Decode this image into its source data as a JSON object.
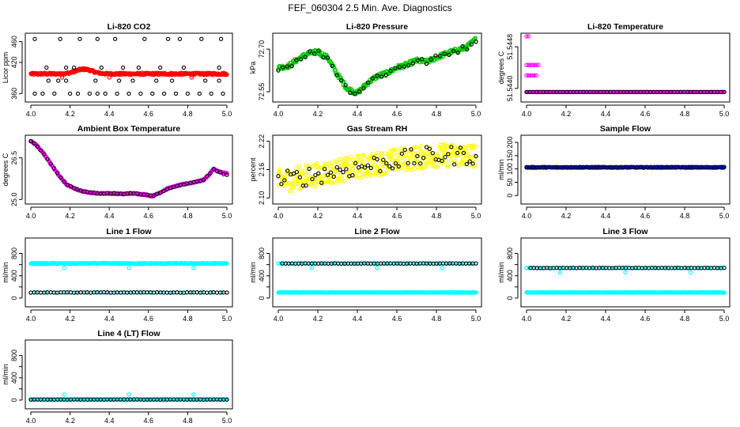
{
  "title": "FEF_060304  2.5 Min. Ave. Diagnostics",
  "colors": {
    "black": "#000000",
    "red": "#ff0000",
    "green": "#00c800",
    "magenta": "#ff00ff",
    "yellow": "#ffff00",
    "blue": "#0000ff",
    "cyan": "#00ffff"
  },
  "chart_data": [
    {
      "id": "co2",
      "type": "scatter",
      "title": "Li-820 CO2",
      "ylabel": "Licor ppm",
      "xlim": [
        4.0,
        5.0
      ],
      "xticks": [
        "4.0",
        "4.2",
        "4.4",
        "4.6",
        "4.8",
        "5.0"
      ],
      "ylim": [
        350,
        470
      ],
      "yticks": [
        360,
        420,
        460
      ],
      "ytick_labels": [
        "360",
        "420",
        "460"
      ],
      "series": [
        {
          "name": "red",
          "color": "#ff0000",
          "kind": "band",
          "y": 398,
          "jitter": 2,
          "n": 380,
          "bumps": [
            {
              "x": 4.27,
              "w": 0.06,
              "h": 9
            }
          ],
          "x": [
            4.16,
            4.4,
            4.82
          ],
          "yv": [
            391,
            391,
            391
          ]
        },
        {
          "name": "black",
          "color": "#000000",
          "kind": "points",
          "x": [
            4.02,
            4.06,
            4.12,
            4.2,
            4.24,
            4.3,
            4.34,
            4.38,
            4.44,
            4.5,
            4.56,
            4.62,
            4.68,
            4.74,
            4.8,
            4.86,
            4.92,
            4.98,
            4.09,
            4.14,
            4.18,
            4.33,
            4.45,
            4.52,
            4.64,
            4.72,
            4.89,
            4.96,
            4.08,
            4.18,
            4.22,
            4.36,
            4.47,
            4.55,
            4.66,
            4.78,
            4.96,
            4.02,
            4.15,
            4.25,
            4.34,
            4.43,
            4.58,
            4.7,
            4.76,
            4.87,
            4.97
          ],
          "y": [
            360,
            360,
            360,
            360,
            360,
            360,
            360,
            360,
            360,
            360,
            360,
            360,
            360,
            360,
            360,
            360,
            360,
            360,
            385,
            385,
            385,
            385,
            385,
            385,
            385,
            385,
            385,
            385,
            410,
            410,
            410,
            410,
            410,
            410,
            410,
            410,
            410,
            465,
            465,
            465,
            465,
            465,
            465,
            465,
            465,
            465,
            465
          ]
        }
      ]
    },
    {
      "id": "pressure",
      "type": "scatter",
      "title": "Li-820 Pressure",
      "ylabel": "kPa",
      "xlim": [
        4.0,
        5.0
      ],
      "xticks": [
        "4.0",
        "4.2",
        "4.4",
        "4.6",
        "4.8",
        "5.0"
      ],
      "ylim": [
        72.525,
        72.745
      ],
      "yticks": [
        72.55,
        72.7
      ],
      "ytick_labels": [
        "72.55",
        "72.70"
      ],
      "series": [
        {
          "name": "green",
          "color": "#00c800",
          "kind": "curve",
          "jitter": 0.008,
          "n": 320,
          "x": [
            4.0,
            4.05,
            4.1,
            4.15,
            4.2,
            4.25,
            4.3,
            4.35,
            4.4,
            4.45,
            4.5,
            4.55,
            4.6,
            4.65,
            4.7,
            4.75,
            4.8,
            4.85,
            4.9,
            4.95,
            5.0
          ],
          "y": [
            72.635,
            72.64,
            72.665,
            72.685,
            72.69,
            72.67,
            72.61,
            72.56,
            72.545,
            72.58,
            72.605,
            72.615,
            72.635,
            72.645,
            72.66,
            72.655,
            72.67,
            72.685,
            72.695,
            72.705,
            72.735
          ]
        },
        {
          "name": "black",
          "color": "#000000",
          "kind": "curve",
          "jitter": 0.01,
          "n": 45,
          "x": [
            4.0,
            4.05,
            4.1,
            4.15,
            4.2,
            4.25,
            4.3,
            4.35,
            4.4,
            4.45,
            4.5,
            4.55,
            4.6,
            4.65,
            4.7,
            4.75,
            4.8,
            4.85,
            4.9,
            4.95,
            5.0
          ],
          "y": [
            72.635,
            72.64,
            72.665,
            72.685,
            72.69,
            72.67,
            72.61,
            72.56,
            72.545,
            72.58,
            72.605,
            72.615,
            72.635,
            72.645,
            72.66,
            72.655,
            72.67,
            72.685,
            72.695,
            72.705,
            72.735
          ]
        }
      ]
    },
    {
      "id": "licortemp",
      "type": "scatter",
      "title": "Li-820 Temperature",
      "ylabel": "degrees C",
      "xlim": [
        4.0,
        5.0
      ],
      "xticks": [
        "4.0",
        "4.2",
        "4.4",
        "4.6",
        "4.8",
        "5.0"
      ],
      "ylim": [
        51.5438,
        51.545
      ],
      "yticks": [
        51.544,
        51.5448
      ],
      "ytick_labels": [
        "51.5440",
        "51.5448"
      ],
      "series": [
        {
          "name": "magenta",
          "color": "#ff00ff",
          "kind": "points",
          "x": [
            4.0,
            4.01,
            4.02,
            4.03,
            4.04,
            4.05,
            4.0,
            4.01,
            4.02,
            4.03,
            4.04,
            4.05,
            4.06,
            4.0,
            4.01
          ],
          "y": [
            51.54425,
            51.54425,
            51.54425,
            51.54425,
            51.54425,
            51.54425,
            51.54445,
            51.54445,
            51.54445,
            51.54445,
            51.54445,
            51.54445,
            51.54445,
            51.545,
            51.545
          ]
        },
        {
          "name": "magenta",
          "color": "#ff00ff",
          "kind": "band",
          "y": 51.54393,
          "jitter": 0.0,
          "n": 250
        },
        {
          "name": "black",
          "color": "#000000",
          "kind": "band",
          "y": 51.54393,
          "jitter": 0.0,
          "n": 60
        }
      ]
    },
    {
      "id": "boxtemp",
      "type": "scatter",
      "title": "Ambient Box Temperature",
      "ylabel": "degrees C",
      "xlim": [
        4.0,
        5.0
      ],
      "xticks": [
        "4.0",
        "4.2",
        "4.4",
        "4.6",
        "4.8",
        "5.0"
      ],
      "ylim": [
        24.95,
        27.2
      ],
      "yticks": [
        25.0,
        26.5
      ],
      "ytick_labels": [
        "25.0",
        "26.5"
      ],
      "series": [
        {
          "name": "magenta",
          "color": "#ff00ff",
          "kind": "curve",
          "jitter": 0.02,
          "n": 330,
          "x": [
            4.0,
            4.03,
            4.06,
            4.1,
            4.14,
            4.18,
            4.22,
            4.26,
            4.3,
            4.34,
            4.4,
            4.46,
            4.52,
            4.58,
            4.62,
            4.66,
            4.7,
            4.76,
            4.82,
            4.88,
            4.91,
            4.93,
            4.96,
            4.99
          ],
          "y": [
            27.1,
            26.95,
            26.7,
            26.3,
            25.9,
            25.55,
            25.4,
            25.3,
            25.25,
            25.22,
            25.22,
            25.2,
            25.22,
            25.18,
            25.12,
            25.25,
            25.4,
            25.52,
            25.6,
            25.7,
            25.9,
            26.1,
            26.0,
            25.95
          ]
        },
        {
          "name": "black",
          "color": "#000000",
          "kind": "curve",
          "jitter": 0.015,
          "n": 60,
          "x": [
            4.0,
            4.03,
            4.06,
            4.1,
            4.14,
            4.18,
            4.22,
            4.26,
            4.3,
            4.34,
            4.4,
            4.46,
            4.52,
            4.58,
            4.62,
            4.66,
            4.7,
            4.76,
            4.82,
            4.88,
            4.91,
            4.93,
            4.96,
            4.99
          ],
          "y": [
            27.1,
            26.95,
            26.7,
            26.3,
            25.9,
            25.55,
            25.4,
            25.3,
            25.25,
            25.22,
            25.22,
            25.2,
            25.22,
            25.18,
            25.12,
            25.25,
            25.4,
            25.52,
            25.6,
            25.7,
            25.9,
            26.1,
            26.0,
            25.88
          ]
        }
      ]
    },
    {
      "id": "rh",
      "type": "scatter",
      "title": "Gas Stream RH",
      "ylabel": "percent",
      "xlim": [
        4.0,
        5.0
      ],
      "xticks": [
        "4.0",
        "4.2",
        "4.4",
        "4.6",
        "4.8",
        "5.0"
      ],
      "ylim": [
        2.094,
        2.226
      ],
      "yticks": [
        2.1,
        2.16,
        2.22
      ],
      "ytick_labels": [
        "2.10",
        "2.16",
        "2.22"
      ],
      "series": [
        {
          "name": "yellow",
          "color": "#ffff00",
          "kind": "curve",
          "jitter": 0.025,
          "n": 420,
          "x": [
            4.0,
            4.2,
            4.4,
            4.6,
            4.8,
            5.0
          ],
          "y": [
            2.135,
            2.15,
            2.165,
            2.18,
            2.19,
            2.19
          ]
        },
        {
          "name": "black",
          "color": "#000000",
          "kind": "curve",
          "jitter": 0.02,
          "n": 65,
          "x": [
            4.0,
            4.2,
            4.4,
            4.6,
            4.8,
            5.0
          ],
          "y": [
            2.135,
            2.15,
            2.165,
            2.18,
            2.19,
            2.19
          ]
        }
      ]
    },
    {
      "id": "sampleflow",
      "type": "scatter",
      "title": "Sample Flow",
      "ylabel": "ml/min",
      "xlim": [
        4.0,
        5.0
      ],
      "xticks": [
        "4.0",
        "4.2",
        "4.4",
        "4.6",
        "4.8",
        "5.0"
      ],
      "ylim": [
        -20,
        215
      ],
      "yticks": [
        0,
        50,
        100,
        150,
        200
      ],
      "ytick_labels": [
        "0",
        "50",
        "100",
        "150",
        "200"
      ],
      "series": [
        {
          "name": "blue",
          "color": "#0000ff",
          "kind": "band",
          "y": 106,
          "jitter": 1.5,
          "n": 330
        },
        {
          "name": "black",
          "color": "#000000",
          "kind": "band",
          "y": 106,
          "jitter": 1,
          "n": 60
        }
      ]
    },
    {
      "id": "line1",
      "type": "scatter",
      "title": "Line 1 Flow",
      "ylabel": "ml/min",
      "xlim": [
        4.0,
        5.0
      ],
      "xticks": [
        "4.0",
        "4.2",
        "4.4",
        "4.6",
        "4.8",
        "5.0"
      ],
      "ylim": [
        -100,
        1020
      ],
      "yticks": [
        0,
        200,
        400,
        600,
        800
      ],
      "ytick_labels": [
        "0",
        "",
        "400",
        "",
        "800"
      ],
      "series": [
        {
          "name": "cyan",
          "color": "#00ffff",
          "kind": "band",
          "y": 620,
          "jitter": 8,
          "n": 330
        },
        {
          "name": "cyan",
          "color": "#00ffff",
          "kind": "points",
          "x": [
            4.17,
            4.5,
            4.83
          ],
          "y": [
            540,
            540,
            540
          ]
        },
        {
          "name": "cyan",
          "color": "#00ffff",
          "kind": "band",
          "y": 100,
          "jitter": 2,
          "n": 40
        },
        {
          "name": "black",
          "color": "#000000",
          "kind": "band",
          "y": 100,
          "jitter": 3,
          "n": 60
        }
      ]
    },
    {
      "id": "line2",
      "type": "scatter",
      "title": "Line 2 Flow",
      "ylabel": "ml/min",
      "xlim": [
        4.0,
        5.0
      ],
      "xticks": [
        "4.0",
        "4.2",
        "4.4",
        "4.6",
        "4.8",
        "5.0"
      ],
      "ylim": [
        -100,
        1020
      ],
      "yticks": [
        0,
        200,
        400,
        600,
        800
      ],
      "ytick_labels": [
        "0",
        "",
        "400",
        "",
        "800"
      ],
      "series": [
        {
          "name": "cyan",
          "color": "#00ffff",
          "kind": "band",
          "y": 100,
          "jitter": 3,
          "n": 330
        },
        {
          "name": "cyan",
          "color": "#00ffff",
          "kind": "band",
          "y": 620,
          "jitter": 3,
          "n": 80
        },
        {
          "name": "cyan",
          "color": "#00ffff",
          "kind": "points",
          "x": [
            4.0,
            4.17,
            4.5,
            4.83
          ],
          "y": [
            620,
            540,
            540,
            540
          ]
        },
        {
          "name": "black",
          "color": "#000000",
          "kind": "band",
          "y": 620,
          "jitter": 3,
          "n": 60,
          "x0": 4.02
        }
      ]
    },
    {
      "id": "line3",
      "type": "scatter",
      "title": "Line 3 Flow",
      "ylabel": "ml/min",
      "xlim": [
        4.0,
        5.0
      ],
      "xticks": [
        "4.0",
        "4.2",
        "4.4",
        "4.6",
        "4.8",
        "5.0"
      ],
      "ylim": [
        -100,
        1020
      ],
      "yticks": [
        0,
        200,
        400,
        600,
        800
      ],
      "ytick_labels": [
        "0",
        "",
        "400",
        "",
        "800"
      ],
      "series": [
        {
          "name": "cyan",
          "color": "#00ffff",
          "kind": "band",
          "y": 100,
          "jitter": 3,
          "n": 330
        },
        {
          "name": "cyan",
          "color": "#00ffff",
          "kind": "band",
          "y": 540,
          "jitter": 3,
          "n": 80
        },
        {
          "name": "cyan",
          "color": "#00ffff",
          "kind": "points",
          "x": [
            4.0,
            4.17,
            4.5,
            4.83
          ],
          "y": [
            540,
            460,
            460,
            460
          ]
        },
        {
          "name": "black",
          "color": "#000000",
          "kind": "band",
          "y": 540,
          "jitter": 3,
          "n": 60,
          "x0": 4.02
        }
      ]
    },
    {
      "id": "line4",
      "type": "scatter",
      "title": "Line 4 (LT) Flow",
      "ylabel": "ml/min",
      "xlim": [
        4.0,
        5.0
      ],
      "xticks": [
        "4.0",
        "4.2",
        "4.4",
        "4.6",
        "4.8",
        "5.0"
      ],
      "ylim": [
        -100,
        1020
      ],
      "yticks": [
        0,
        200,
        400,
        600,
        800
      ],
      "ytick_labels": [
        "0",
        "",
        "400",
        "",
        "800"
      ],
      "series": [
        {
          "name": "cyan",
          "color": "#00ffff",
          "kind": "band",
          "y": 10,
          "jitter": 2,
          "n": 330
        },
        {
          "name": "cyan",
          "color": "#00ffff",
          "kind": "points",
          "x": [
            4.17,
            4.5,
            4.83
          ],
          "y": [
            100,
            100,
            100
          ]
        },
        {
          "name": "black",
          "color": "#000000",
          "kind": "band",
          "y": 10,
          "jitter": 2,
          "n": 60
        }
      ]
    }
  ]
}
